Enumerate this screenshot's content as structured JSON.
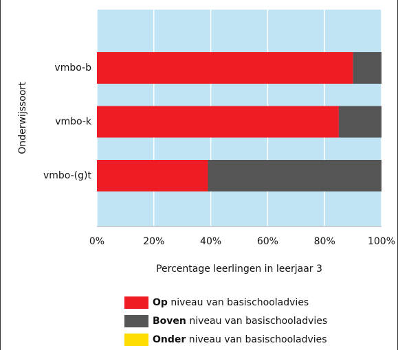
{
  "chart_data": {
    "type": "stacked_barh",
    "y_label": "Onderwijssoort",
    "x_label": "Percentage leerlingen in leerjaar 3",
    "categories": [
      "vmbo-b",
      "vmbo-k",
      "vmbo-(g)t"
    ],
    "series": [
      {
        "name": "Op",
        "color": "#ee1c25",
        "values": [
          90,
          85,
          39
        ]
      },
      {
        "name": "Boven",
        "color": "#555555",
        "values": [
          10,
          15,
          61
        ]
      },
      {
        "name": "Onder",
        "color": "#ffdd00",
        "values": [
          0,
          0,
          0
        ]
      }
    ],
    "legend_text": "niveau van basischooladvies",
    "xlim": [
      0,
      100
    ],
    "xticks": [
      {
        "value": 0,
        "label": "0%"
      },
      {
        "value": 20,
        "label": "20%"
      },
      {
        "value": 40,
        "label": "40%"
      },
      {
        "value": 60,
        "label": "60%"
      },
      {
        "value": 80,
        "label": "80%"
      },
      {
        "value": 100,
        "label": "100%"
      }
    ],
    "grid": true,
    "background": "#c0e4f3"
  }
}
